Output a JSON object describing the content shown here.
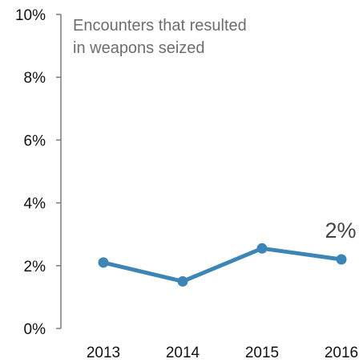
{
  "chart_data": {
    "type": "line",
    "title_lines": [
      "Encounters that resulted",
      "in weapons seized"
    ],
    "categories": [
      "2013",
      "2014",
      "2015",
      "2016"
    ],
    "series": [
      {
        "values": [
          2.1,
          1.5,
          2.55,
          2.2
        ],
        "color": "#3d85b5"
      }
    ],
    "end_label": "2%",
    "ylim": [
      0,
      10
    ],
    "y_ticks": [
      "0%",
      "2%",
      "4%",
      "6%",
      "8%",
      "10%"
    ],
    "xlabel": "",
    "ylabel": "",
    "grid": false,
    "axis_color": "#7a7a7a"
  }
}
